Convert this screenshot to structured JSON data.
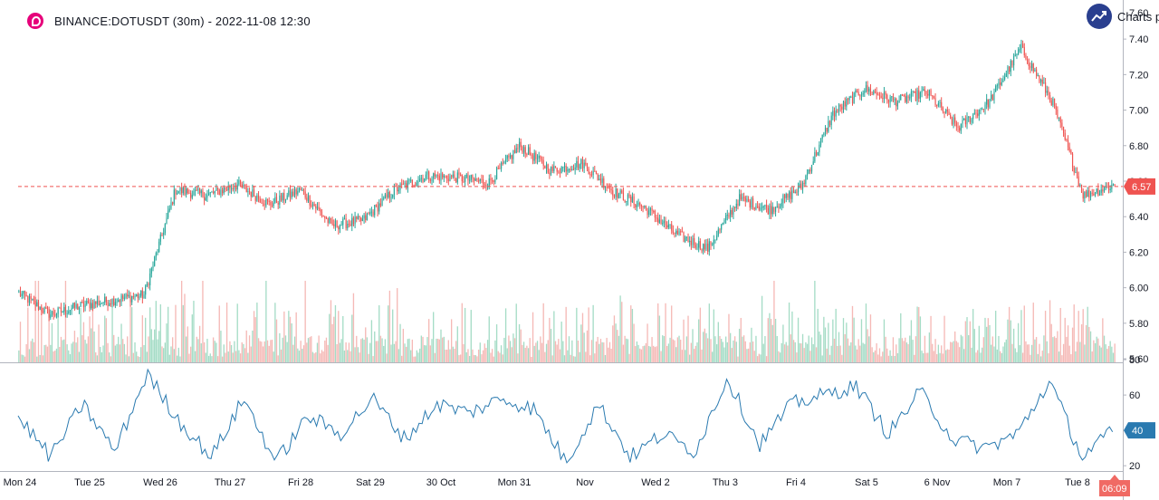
{
  "header": {
    "symbol": "BINANCE:DOTUSDT (30m) - 2022-11-08 12:30",
    "brand": "Charts p",
    "brand_icon": "trend-up-icon",
    "symbol_icon": "polkadot-logo-icon"
  },
  "colors": {
    "up": "#26a69a",
    "down": "#ef5350",
    "volume_up": "#a5dcc6",
    "volume_down": "#f5b9b6",
    "indicator": "#2a7ab0",
    "price_line": "#ef5350",
    "indicator_badge": "#2a7ab0",
    "price_badge": "#ef5350",
    "countdown_badge": "#f06a64"
  },
  "chart_data": [
    {
      "type": "candlestick",
      "title": "BINANCE:DOTUSDT (30m) - 2022-11-08 12:30",
      "x_labels": [
        "Mon 24",
        "Tue 25",
        "Wed 26",
        "Thu 27",
        "Fri 28",
        "Sat 29",
        "30 Oct",
        "Mon 31",
        "Nov",
        "Wed 2",
        "Thu 3",
        "Fri 4",
        "Sat 5",
        "6 Nov",
        "Mon 7",
        "Tue 8"
      ],
      "y_ticks": [
        "7.40",
        "7.20",
        "7.00",
        "6.80",
        "6.60",
        "6.40",
        "6.20",
        "6.00",
        "5.80",
        "5.60"
      ],
      "top_partial_tick": "7.60",
      "ylim": [
        5.58,
        7.62
      ],
      "bars_per_day": 48,
      "anchor_closes": [
        5.97,
        5.85,
        5.9,
        5.93,
        5.96,
        6.55,
        6.52,
        6.58,
        6.47,
        6.55,
        6.35,
        6.38,
        6.55,
        6.63,
        6.62,
        6.59,
        6.8,
        6.66,
        6.7,
        6.54,
        6.45,
        6.3,
        6.22,
        6.5,
        6.44,
        6.57,
        6.98,
        7.12,
        7.05,
        7.1,
        6.9,
        7.05,
        7.35,
        7.05,
        6.52,
        6.58
      ],
      "lows": [
        5.82,
        6.17,
        6.36
      ],
      "highs": [
        7.42,
        7.24,
        6.84,
        6.64
      ],
      "last_price": 6.57,
      "last_price_label": "6.57",
      "countdown": "06:09",
      "volume": "relative per-bar volume histogram at bottom of price pane (no axis)"
    },
    {
      "type": "line",
      "name": "",
      "y_ticks": [
        "80",
        "60",
        "40",
        "20"
      ],
      "ylim": [
        17,
        78
      ],
      "anchor_values": [
        48,
        25,
        55,
        28,
        72,
        45,
        25,
        58,
        22,
        48,
        38,
        58,
        35,
        55,
        50,
        58,
        52,
        22,
        55,
        25,
        38,
        28,
        70,
        32,
        55,
        60,
        65,
        38,
        62,
        35,
        30,
        38,
        68,
        25,
        40
      ],
      "last_value": 40,
      "last_value_label": "40"
    }
  ]
}
